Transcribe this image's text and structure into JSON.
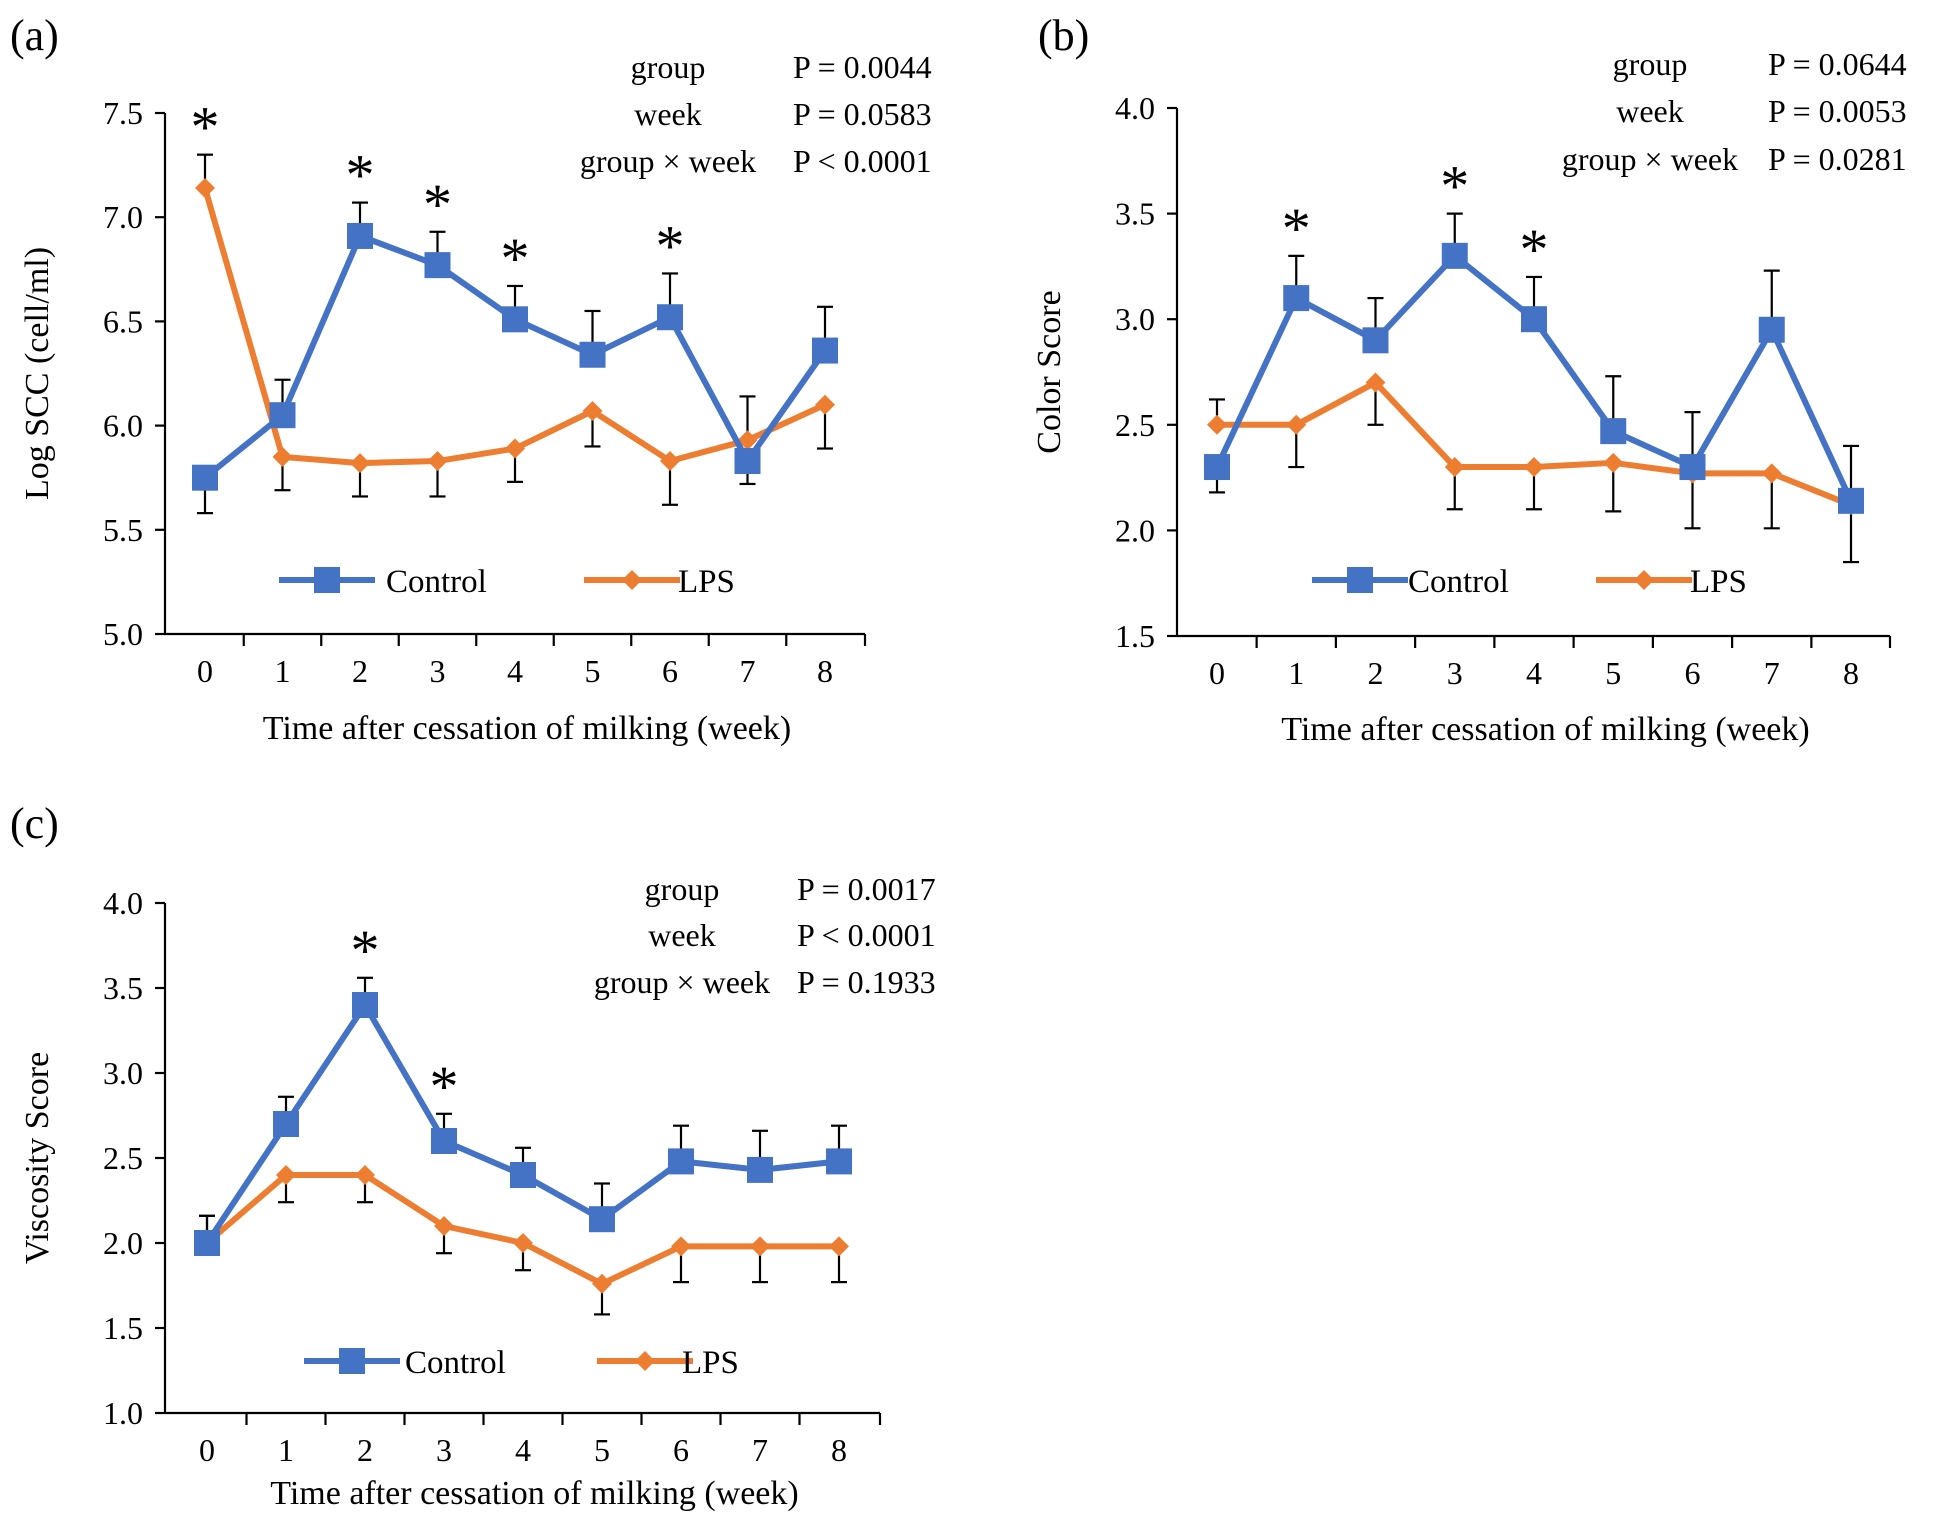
{
  "colors": {
    "control": "#4472C4",
    "lps": "#ED7D31",
    "axis": "#000000"
  },
  "chart_data": [
    {
      "type": "line",
      "panel": "(a)",
      "xlabel": "Time after cessation of milking (week)",
      "ylabel": "Log SCC (cell/ml)",
      "categories": [
        "0",
        "1",
        "2",
        "3",
        "4",
        "5",
        "6",
        "7",
        "8"
      ],
      "ylim": [
        5.0,
        7.5
      ],
      "yticks": [
        "5.0",
        "5.5",
        "6.0",
        "6.5",
        "7.0",
        "7.5"
      ],
      "legend_placement": "bottom-inside",
      "series": [
        {
          "name": "Control",
          "marker": "square",
          "values": [
            5.75,
            6.05,
            6.91,
            6.77,
            6.51,
            6.34,
            6.52,
            5.83,
            6.36
          ],
          "errors": [
            0.17,
            0.17,
            0.16,
            0.16,
            0.16,
            0.21,
            0.21,
            0.11,
            0.21
          ]
        },
        {
          "name": "LPS",
          "marker": "diamond",
          "values": [
            7.14,
            5.85,
            5.82,
            5.83,
            5.89,
            6.07,
            5.83,
            5.93,
            6.1
          ],
          "errors": [
            0.16,
            0.16,
            0.16,
            0.17,
            0.16,
            0.17,
            0.21,
            0.21,
            0.21
          ]
        }
      ],
      "significance": [
        "*",
        "",
        "*",
        "*",
        "*",
        "",
        "*",
        "",
        ""
      ],
      "stats": [
        {
          "label": "group",
          "value": "P = 0.0044"
        },
        {
          "label": "week",
          "value": "P = 0.0583"
        },
        {
          "label": "group × week",
          "value": "P < 0.0001"
        }
      ]
    },
    {
      "type": "line",
      "panel": "(b)",
      "xlabel": "Time after cessation of milking (week)",
      "ylabel": "Color Score",
      "categories": [
        "0",
        "1",
        "2",
        "3",
        "4",
        "5",
        "6",
        "7",
        "8"
      ],
      "ylim": [
        1.5,
        4.0
      ],
      "yticks": [
        "1.5",
        "2.0",
        "2.5",
        "3.0",
        "3.5",
        "4.0"
      ],
      "legend_placement": "bottom-inside",
      "series": [
        {
          "name": "Control",
          "marker": "square",
          "values": [
            2.3,
            3.1,
            2.9,
            3.3,
            3.0,
            2.47,
            2.3,
            2.95,
            2.14
          ],
          "errors": [
            0.12,
            0.2,
            0.2,
            0.2,
            0.2,
            0.26,
            0.26,
            0.28,
            0.26
          ]
        },
        {
          "name": "LPS",
          "marker": "diamond",
          "values": [
            2.5,
            2.5,
            2.7,
            2.3,
            2.3,
            2.32,
            2.27,
            2.27,
            2.12
          ],
          "errors": [
            0.12,
            0.2,
            0.2,
            0.2,
            0.2,
            0.23,
            0.26,
            0.26,
            0.27
          ]
        }
      ],
      "significance": [
        "",
        "*",
        "",
        "*",
        "*",
        "",
        "",
        "",
        ""
      ],
      "stats": [
        {
          "label": "group",
          "value": "P = 0.0644"
        },
        {
          "label": "week",
          "value": "P = 0.0053"
        },
        {
          "label": "group × week",
          "value": "P = 0.0281"
        }
      ]
    },
    {
      "type": "line",
      "panel": "(c)",
      "xlabel": "Time after cessation of milking (week)",
      "ylabel": "Viscosity Score",
      "categories": [
        "0",
        "1",
        "2",
        "3",
        "4",
        "5",
        "6",
        "7",
        "8"
      ],
      "ylim": [
        1.0,
        4.0
      ],
      "yticks": [
        "1.0",
        "1.5",
        "2.0",
        "2.5",
        "3.0",
        "3.5",
        "4.0"
      ],
      "legend_placement": "bottom-inside",
      "series": [
        {
          "name": "Control",
          "marker": "square",
          "values": [
            2.0,
            2.7,
            3.4,
            2.6,
            2.4,
            2.14,
            2.48,
            2.43,
            2.48
          ],
          "errors": [
            0.16,
            0.16,
            0.16,
            0.16,
            0.16,
            0.21,
            0.21,
            0.23,
            0.21
          ]
        },
        {
          "name": "LPS",
          "marker": "diamond",
          "values": [
            2.0,
            2.4,
            2.4,
            2.1,
            2.0,
            1.76,
            1.98,
            1.98,
            1.98
          ],
          "errors": [
            0.16,
            0.16,
            0.16,
            0.16,
            0.16,
            0.18,
            0.21,
            0.21,
            0.21
          ]
        }
      ],
      "significance": [
        "",
        "",
        "*",
        "*",
        "",
        "",
        "",
        "",
        ""
      ],
      "stats": [
        {
          "label": "group",
          "value": "P = 0.0017"
        },
        {
          "label": "week",
          "value": "P < 0.0001"
        },
        {
          "label": "group × week",
          "value": "P = 0.1933"
        }
      ]
    }
  ]
}
